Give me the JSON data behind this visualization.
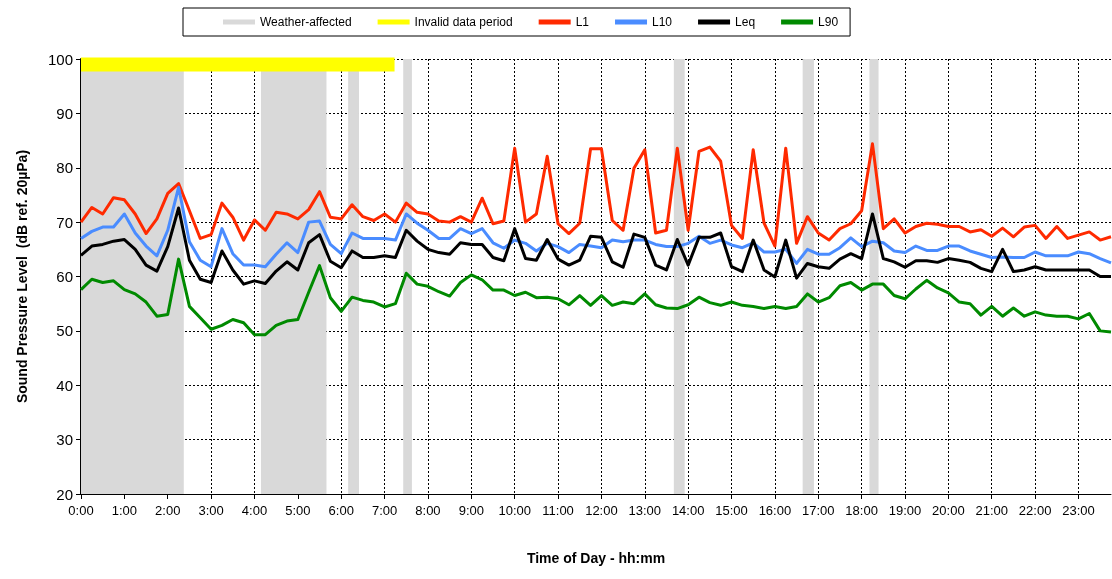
{
  "chart_data": {
    "type": "line",
    "xlabel": "Time of Day - hh:mm",
    "ylabel": "Sound Pressure Level  (dB ref. 20µPa)",
    "x": [
      0,
      0.25,
      0.5,
      0.75,
      1,
      1.25,
      1.5,
      1.75,
      2,
      2.25,
      2.5,
      2.75,
      3,
      3.25,
      3.5,
      3.75,
      4,
      4.25,
      4.5,
      4.75,
      5,
      5.25,
      5.5,
      5.75,
      6,
      6.25,
      6.5,
      6.75,
      7,
      7.25,
      7.5,
      7.75,
      8,
      8.25,
      8.5,
      8.75,
      9,
      9.25,
      9.5,
      9.75,
      10,
      10.25,
      10.5,
      10.75,
      11,
      11.25,
      11.5,
      11.75,
      12,
      12.25,
      12.5,
      12.75,
      13,
      13.25,
      13.5,
      13.75,
      14,
      14.25,
      14.5,
      14.75,
      15,
      15.25,
      15.5,
      15.75,
      16,
      16.25,
      16.5,
      16.75,
      17,
      17.25,
      17.5,
      17.75,
      18,
      18.25,
      18.5,
      18.75,
      19,
      19.25,
      19.5,
      19.75,
      20,
      20.25,
      20.5,
      20.75,
      21,
      21.25,
      21.5,
      21.75,
      22,
      22.25,
      22.5,
      22.75,
      23,
      23.25,
      23.5,
      23.75
    ],
    "series": [
      {
        "name": "Invalid data period",
        "color": "#ffff00",
        "x": [
          0,
          7.23
        ],
        "values": [
          99,
          99
        ]
      },
      {
        "name": "L1",
        "color": "#ff2a00",
        "values": [
          70,
          72.7,
          71.5,
          74.5,
          74.1,
          71.5,
          67.9,
          70.6,
          75.3,
          77.1,
          72.1,
          67,
          67.7,
          73.5,
          70.9,
          66.7,
          70.4,
          68.5,
          71.8,
          71.5,
          70.6,
          72.3,
          75.6,
          70.9,
          70.6,
          73.2,
          71,
          70.3,
          71.5,
          70,
          73.5,
          71.8,
          71.5,
          70.2,
          70,
          71,
          70,
          74.4,
          69.7,
          70.2,
          83.6,
          70,
          71.5,
          82.1,
          69.7,
          67.9,
          69.8,
          83.5,
          83.5,
          70.3,
          68.5,
          79.9,
          83.3,
          68,
          68.5,
          83.6,
          68.5,
          83,
          83.8,
          81.2,
          69.4,
          67,
          83.3,
          69.8,
          65.6,
          83.6,
          66.1,
          71,
          68,
          66.7,
          68.8,
          69.7,
          72.1,
          84.4,
          68.8,
          70.6,
          68,
          69.2,
          69.8,
          69.6,
          69.2,
          69.2,
          68.2,
          68.6,
          67.4,
          68.9,
          67.3,
          69.1,
          69.4,
          67,
          69.2,
          67,
          67.6,
          68.2,
          66.7,
          67.3
        ]
      },
      {
        "name": "L10",
        "color": "#4a8cff",
        "values": [
          67,
          68.3,
          69.1,
          69.1,
          71.5,
          68,
          65.6,
          63.8,
          68.5,
          76.4,
          66.4,
          63,
          61.8,
          68.8,
          64.2,
          62.1,
          62.1,
          61.8,
          64.1,
          66.2,
          64.4,
          70,
          70.2,
          65.9,
          64.2,
          68,
          67,
          67,
          67,
          66.7,
          71.5,
          69.8,
          68.5,
          67,
          67,
          68.8,
          67.9,
          68.8,
          66.2,
          65.2,
          66.7,
          66.1,
          64.7,
          66.1,
          65.5,
          64.4,
          65.9,
          65.6,
          65.3,
          66.7,
          66.4,
          66.7,
          66.7,
          65.9,
          65.5,
          65.5,
          66.1,
          67.4,
          66.1,
          66.7,
          65.8,
          65.3,
          66.2,
          64.5,
          64.5,
          65,
          62.4,
          65,
          64.1,
          64.1,
          65.3,
          67.1,
          65.5,
          66.5,
          66.2,
          64.7,
          64.4,
          65.6,
          64.8,
          64.8,
          65.6,
          65.6,
          64.7,
          64.1,
          63.5,
          63.6,
          63.5,
          63.5,
          64.5,
          63.8,
          63.8,
          63.8,
          64.5,
          64.2,
          63.3,
          62.5
        ]
      },
      {
        "name": "Leq",
        "color": "#000000",
        "values": [
          63.9,
          65.6,
          65.9,
          66.5,
          66.8,
          65,
          62.1,
          61,
          65.5,
          72.6,
          63,
          59.5,
          58.9,
          64.7,
          61.2,
          58.6,
          59.2,
          58.7,
          61,
          62.7,
          61.2,
          66.2,
          67.7,
          62.8,
          61.6,
          64.7,
          63.5,
          63.5,
          63.8,
          63.5,
          68.5,
          66.5,
          65,
          64.4,
          64.1,
          66.2,
          65.9,
          65.9,
          63.5,
          62.9,
          68.8,
          63.3,
          63,
          66.8,
          63.2,
          62.1,
          63,
          67.4,
          67.2,
          62.7,
          61.7,
          67.8,
          67.2,
          62.1,
          61.2,
          66.8,
          62.1,
          67.2,
          67.2,
          68,
          61.8,
          60.9,
          66.7,
          61.2,
          59.9,
          66.7,
          59.7,
          62.4,
          61.8,
          61.5,
          63.2,
          64.2,
          63.3,
          71.5,
          63.3,
          62.7,
          61.7,
          62.9,
          62.9,
          62.6,
          63.3,
          63,
          62.6,
          61.5,
          60.9,
          65,
          60.9,
          61.2,
          61.8,
          61.2,
          61.2,
          61.2,
          61.2,
          61.2,
          60,
          60
        ]
      },
      {
        "name": "L90",
        "color": "#008a00",
        "values": [
          57.6,
          59.5,
          58.9,
          59.2,
          57.6,
          56.8,
          55.3,
          52.7,
          53,
          63.2,
          54.5,
          52.4,
          50.3,
          51,
          52.1,
          51.5,
          49.3,
          49.3,
          51,
          51.8,
          52.1,
          57.1,
          62,
          56.1,
          53.6,
          56.2,
          55.6,
          55.3,
          54.4,
          55,
          60.6,
          58.6,
          58.2,
          57.2,
          56.4,
          58.9,
          60.3,
          59.4,
          57.5,
          57.5,
          56.5,
          57.1,
          56.1,
          56.2,
          55.9,
          54.8,
          56.5,
          54.7,
          56.5,
          54.7,
          55.3,
          55,
          56.8,
          54.8,
          54.2,
          54.1,
          54.8,
          56.2,
          55.2,
          54.7,
          55.3,
          54.7,
          54.5,
          54.1,
          54.5,
          54.1,
          54.5,
          56.8,
          55.3,
          56.1,
          58.3,
          58.9,
          57.5,
          58.6,
          58.6,
          56.5,
          55.9,
          57.7,
          59.3,
          57.9,
          57,
          55.3,
          55,
          52.9,
          54.5,
          52.7,
          54.2,
          52.7,
          53.5,
          52.9,
          52.7,
          52.7,
          52.2,
          53.2,
          50,
          49.8
        ]
      }
    ],
    "bands": [
      {
        "axis": "x",
        "from": 0,
        "to": 2.37,
        "label": "Weather-affected",
        "color": "#d9d9d9"
      },
      {
        "axis": "x",
        "from": 4.15,
        "to": 5.66,
        "label": null,
        "color": "#d9d9d9"
      },
      {
        "axis": "x",
        "from": 6.16,
        "to": 6.41,
        "label": null,
        "color": "#d9d9d9"
      },
      {
        "axis": "x",
        "from": 7.43,
        "to": 7.63,
        "label": null,
        "color": "#d9d9d9"
      },
      {
        "axis": "x",
        "from": 13.67,
        "to": 13.92,
        "label": null,
        "color": "#d9d9d9"
      },
      {
        "axis": "x",
        "from": 16.64,
        "to": 16.9,
        "label": null,
        "color": "#d9d9d9"
      },
      {
        "axis": "x",
        "from": 18.18,
        "to": 18.39,
        "label": null,
        "color": "#d9d9d9"
      }
    ],
    "xlim": [
      0,
      23.75
    ],
    "xticks": [
      {
        "value": 0,
        "label": "0:00"
      },
      {
        "value": 1,
        "label": "1:00"
      },
      {
        "value": 2,
        "label": "2:00"
      },
      {
        "value": 3,
        "label": "3:00"
      },
      {
        "value": 4,
        "label": "4:00"
      },
      {
        "value": 5,
        "label": "5:00"
      },
      {
        "value": 6,
        "label": "6:00"
      },
      {
        "value": 7,
        "label": "7:00"
      },
      {
        "value": 8,
        "label": "8:00"
      },
      {
        "value": 9,
        "label": "9:00"
      },
      {
        "value": 10,
        "label": "10:00"
      },
      {
        "value": 11,
        "label": "11:00"
      },
      {
        "value": 12,
        "label": "12:00"
      },
      {
        "value": 13,
        "label": "13:00"
      },
      {
        "value": 14,
        "label": "14:00"
      },
      {
        "value": 15,
        "label": "15:00"
      },
      {
        "value": 16,
        "label": "16:00"
      },
      {
        "value": 17,
        "label": "17:00"
      },
      {
        "value": 18,
        "label": "18:00"
      },
      {
        "value": 19,
        "label": "19:00"
      },
      {
        "value": 20,
        "label": "20:00"
      },
      {
        "value": 21,
        "label": "21:00"
      },
      {
        "value": 22,
        "label": "22:00"
      },
      {
        "value": 23,
        "label": "23:00"
      }
    ],
    "ylim": [
      20,
      100
    ],
    "yticks": [
      20,
      30,
      40,
      50,
      60,
      70,
      80,
      90,
      100
    ],
    "grid": true,
    "legend": "top",
    "marker": "none",
    "line_style": "solid"
  }
}
